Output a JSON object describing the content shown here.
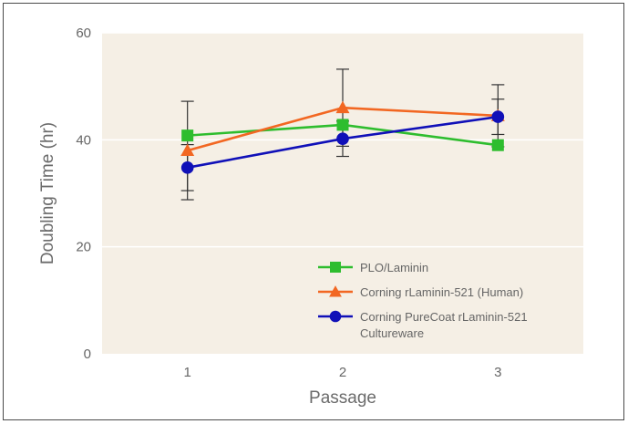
{
  "chart_data": {
    "type": "line",
    "title": "",
    "xlabel": "Passage",
    "ylabel": "Doubling Time (hr)",
    "x": [
      1,
      2,
      3
    ],
    "x_tick_labels": [
      "1",
      "2",
      "3"
    ],
    "y_tick_labels": [
      "0",
      "20",
      "40",
      "60"
    ],
    "ylim": [
      0,
      60
    ],
    "grid": "horizontal",
    "legend_position": "bottom-right",
    "plot_background": "#f5efe5",
    "series": [
      {
        "name": "PLO/Laminin",
        "color": "#2ebd2e",
        "marker": "square",
        "values": [
          40.8,
          42.8,
          39.0
        ],
        "error": [
          null,
          null,
          null
        ]
      },
      {
        "name": "Corning rLaminin-521 (Human)",
        "color": "#f26722",
        "marker": "triangle",
        "values": [
          38.0,
          46.0,
          44.5
        ],
        "error": [
          9.2,
          7.2,
          5.8
        ]
      },
      {
        "name": "Corning PureCoat rLaminin-521 Cultureware",
        "legend_lines": [
          "Corning PureCoat rLaminin-521",
          "Cultureware"
        ],
        "color": "#1010b8",
        "marker": "circle",
        "values": [
          34.8,
          40.2,
          44.3
        ],
        "error": [
          4.3,
          3.3,
          3.3
        ]
      }
    ]
  }
}
